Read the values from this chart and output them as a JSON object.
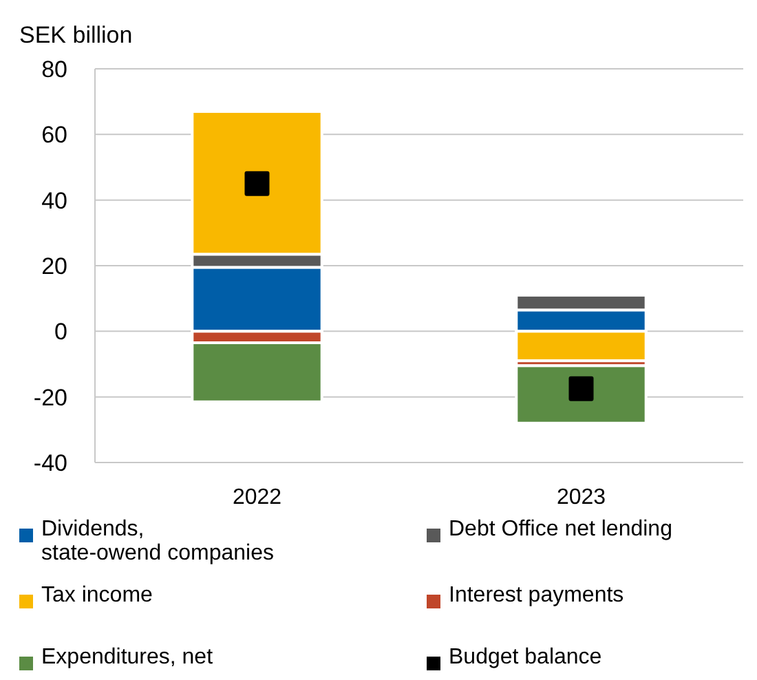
{
  "chart_data": {
    "type": "bar",
    "ylabel": "SEK billion",
    "categories": [
      "2022",
      "2023"
    ],
    "stacked": true,
    "grid": "y",
    "legend": "bottom",
    "ylim": [
      -40,
      80
    ],
    "yticks": [
      -40,
      -20,
      0,
      20,
      40,
      60,
      80
    ],
    "series": [
      {
        "name": "Dividends,\nstate-owend companies",
        "color": "#005ea8",
        "values": [
          19.5,
          6.5
        ]
      },
      {
        "name": "Debt Office net lending",
        "color": "#595959",
        "values": [
          4,
          4.5
        ]
      },
      {
        "name": "Tax income",
        "color": "#f9b800",
        "values": [
          43.5,
          -9
        ]
      },
      {
        "name": "Interest payments",
        "color": "#c0462a",
        "values": [
          -3.5,
          -1.5
        ]
      },
      {
        "name": "Expenditures, net",
        "color": "#5b8c44",
        "values": [
          -18,
          -17.5
        ]
      },
      {
        "name": "Budget balance",
        "type": "scatter",
        "marker": "square",
        "color": "#000000",
        "values": [
          45,
          -17.5
        ]
      }
    ]
  }
}
